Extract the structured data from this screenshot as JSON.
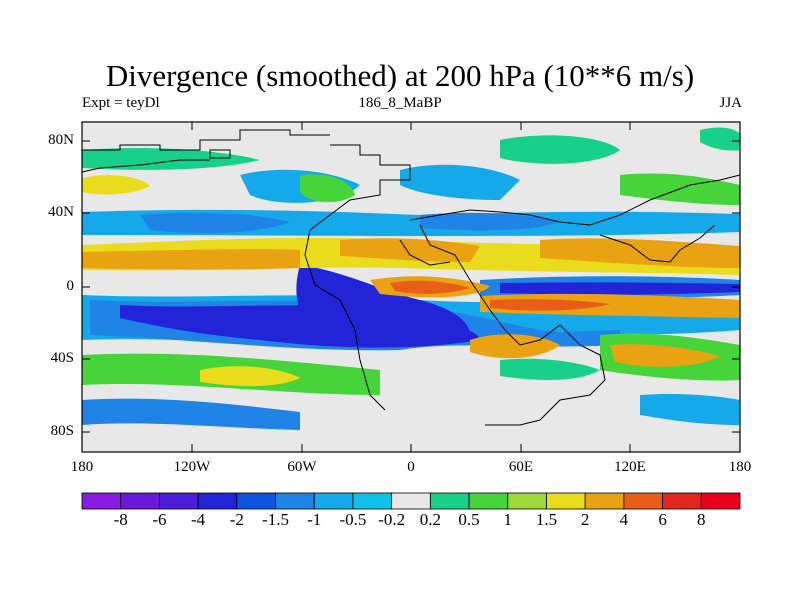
{
  "title": "Divergence (smoothed) at 200 hPa (10**6 m/s)",
  "experiment": "Expt = teyDl",
  "run_label": "186_8_MaBP",
  "season": "JJA",
  "lat_labels": [
    "80N",
    "40N",
    "0",
    "40S",
    "80S"
  ],
  "lon_labels": [
    "180",
    "120W",
    "60W",
    "0",
    "60E",
    "120E",
    "180"
  ],
  "colorbar": {
    "labels": [
      "-8",
      "-6",
      "-4",
      "-2",
      "-1.5",
      "-1",
      "-0.5",
      "-0.2",
      "0.2",
      "0.5",
      "1",
      "1.5",
      "2",
      "4",
      "6",
      "8"
    ],
    "colors": [
      "#8a1be0",
      "#6a18dc",
      "#4b1ed9",
      "#2324d8",
      "#0f55e0",
      "#1f84e6",
      "#15a9ea",
      "#11c0e6",
      "#e8e8e8",
      "#18d08a",
      "#46d43a",
      "#9ed83a",
      "#e8dc1c",
      "#e8a212",
      "#e85e18",
      "#e0261e",
      "#e8001c"
    ]
  }
}
